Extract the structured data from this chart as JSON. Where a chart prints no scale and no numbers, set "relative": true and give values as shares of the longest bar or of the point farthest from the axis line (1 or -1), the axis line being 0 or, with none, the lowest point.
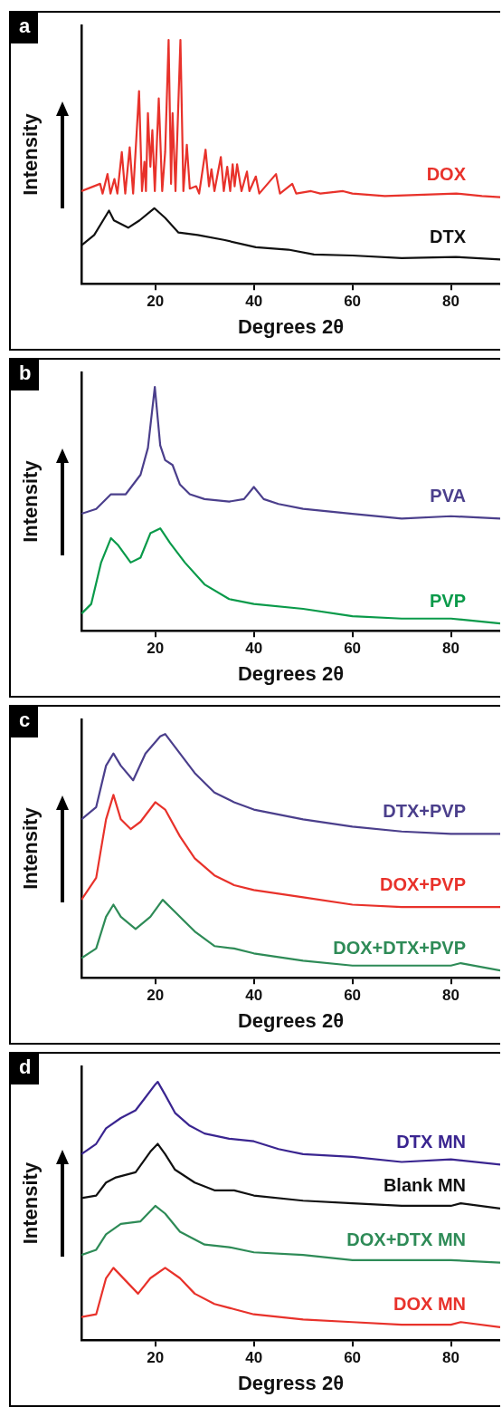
{
  "chart_data": [
    {
      "type": "line",
      "relative": true,
      "xlabel": "Degrees 2θ",
      "ylabel": "Intensity",
      "annotations": [
        "a"
      ],
      "xlim": [
        5,
        90
      ],
      "xticks": [
        20,
        40,
        60,
        80
      ],
      "legend": false,
      "marker": "none",
      "series": [
        {
          "name": "DOX",
          "color": "#e8322b",
          "x": [
            5,
            8.8,
            9.3,
            10.3,
            10.9,
            11.7,
            12.3,
            13.2,
            13.9,
            14.8,
            15.5,
            16.7,
            17.3,
            17.8,
            18.1,
            18.5,
            19.0,
            19.4,
            19.9,
            20.7,
            21.4,
            22.0,
            22.7,
            23.2,
            23.5,
            24.1,
            25.1,
            25.7,
            26.4,
            27.0,
            28.3,
            28.9,
            30.2,
            30.9,
            31.4,
            32.0,
            33.3,
            33.9,
            34.6,
            35.2,
            35.7,
            36.1,
            36.6,
            37.5,
            38.6,
            39.1,
            40.4,
            41.1,
            44.5,
            45.3,
            47.8,
            48.6,
            51.6,
            53.5,
            58.1,
            60,
            66.6,
            81.1,
            86.3,
            90
          ],
          "values": [
            0.38,
            0.41,
            0.37,
            0.45,
            0.37,
            0.43,
            0.37,
            0.54,
            0.37,
            0.56,
            0.37,
            0.79,
            0.38,
            0.5,
            0.38,
            0.7,
            0.48,
            0.63,
            0.38,
            0.76,
            0.38,
            0.54,
            1.0,
            0.41,
            0.7,
            0.38,
            1.0,
            0.38,
            0.57,
            0.39,
            0.4,
            0.37,
            0.55,
            0.4,
            0.47,
            0.38,
            0.52,
            0.38,
            0.48,
            0.38,
            0.49,
            0.4,
            0.49,
            0.38,
            0.46,
            0.38,
            0.44,
            0.37,
            0.45,
            0.37,
            0.41,
            0.37,
            0.38,
            0.37,
            0.38,
            0.37,
            0.36,
            0.37,
            0.36,
            0.355
          ]
        },
        {
          "name": "DTX",
          "color": "#111111",
          "x": [
            5,
            7.6,
            10.6,
            11.6,
            14.5,
            16.8,
            19.8,
            22,
            24.7,
            28.6,
            33.9,
            40.4,
            47,
            52.2,
            60,
            70,
            81,
            90
          ],
          "values": [
            0.157,
            0.2,
            0.3,
            0.26,
            0.23,
            0.26,
            0.31,
            0.27,
            0.21,
            0.2,
            0.18,
            0.15,
            0.14,
            0.12,
            0.116,
            0.105,
            0.11,
            0.1
          ]
        }
      ]
    },
    {
      "type": "line",
      "relative": true,
      "xlabel": "Degrees 2θ",
      "ylabel": "Intensity",
      "annotations": [
        "b"
      ],
      "xlim": [
        5,
        90
      ],
      "xticks": [
        20,
        40,
        60,
        80
      ],
      "legend": false,
      "marker": "none",
      "series": [
        {
          "name": "PVA",
          "color": "#4b3f8c",
          "x": [
            5,
            8,
            11,
            14,
            17,
            18.5,
            19.9,
            21,
            22,
            23.5,
            25,
            27,
            30,
            35,
            38,
            40,
            42,
            45,
            50,
            60,
            70,
            80,
            90
          ],
          "values": [
            0.48,
            0.5,
            0.56,
            0.56,
            0.64,
            0.75,
            1.0,
            0.76,
            0.7,
            0.68,
            0.6,
            0.56,
            0.54,
            0.53,
            0.54,
            0.59,
            0.54,
            0.52,
            0.5,
            0.48,
            0.46,
            0.47,
            0.46
          ]
        },
        {
          "name": "PVP",
          "color": "#0a9a4a",
          "x": [
            5,
            7,
            9,
            11,
            12.5,
            15,
            17,
            19,
            21,
            23,
            26,
            30,
            35,
            40,
            50,
            60,
            70,
            80,
            90
          ],
          "values": [
            0.07,
            0.11,
            0.28,
            0.38,
            0.35,
            0.28,
            0.3,
            0.4,
            0.42,
            0.36,
            0.28,
            0.19,
            0.13,
            0.11,
            0.09,
            0.06,
            0.05,
            0.05,
            0.03
          ]
        }
      ]
    },
    {
      "type": "line",
      "relative": true,
      "xlabel": "Degrees 2θ",
      "ylabel": "Intensity",
      "annotations": [
        "c"
      ],
      "xlim": [
        5,
        90
      ],
      "xticks": [
        20,
        40,
        60,
        80
      ],
      "legend": false,
      "marker": "none",
      "series": [
        {
          "name": "DTX+PVP",
          "color": "#4b3f8c",
          "x": [
            5,
            8,
            10,
            11.5,
            13,
            15.5,
            18,
            21,
            22,
            25,
            28,
            32,
            36,
            40,
            50,
            60,
            70,
            80,
            90
          ],
          "values": [
            0.65,
            0.7,
            0.87,
            0.92,
            0.87,
            0.81,
            0.92,
            0.99,
            1.0,
            0.92,
            0.84,
            0.76,
            0.72,
            0.69,
            0.65,
            0.62,
            0.6,
            0.59,
            0.59
          ]
        },
        {
          "name": "DOX+PVP",
          "color": "#e8322b",
          "x": [
            5,
            8,
            10,
            11.5,
            13,
            15,
            17,
            20,
            22,
            25,
            28,
            32,
            36,
            40,
            50,
            60,
            70,
            80,
            90
          ],
          "values": [
            0.32,
            0.41,
            0.65,
            0.75,
            0.65,
            0.61,
            0.64,
            0.72,
            0.69,
            0.58,
            0.49,
            0.42,
            0.38,
            0.36,
            0.33,
            0.3,
            0.29,
            0.29,
            0.29
          ]
        },
        {
          "name": "DOX+DTX+PVP",
          "color": "#2e8b57",
          "x": [
            5,
            8,
            10,
            11.5,
            13,
            16,
            19,
            21.5,
            24,
            28,
            32,
            36,
            40,
            50,
            60,
            70,
            80,
            82,
            90
          ],
          "values": [
            0.08,
            0.12,
            0.25,
            0.3,
            0.25,
            0.2,
            0.25,
            0.32,
            0.27,
            0.19,
            0.13,
            0.12,
            0.1,
            0.07,
            0.05,
            0.05,
            0.05,
            0.06,
            0.03
          ]
        }
      ]
    },
    {
      "type": "line",
      "relative": true,
      "xlabel": "Degress 2θ",
      "ylabel": "Intensity",
      "annotations": [
        "d"
      ],
      "xlim": [
        5,
        90
      ],
      "xticks": [
        20,
        40,
        60,
        80
      ],
      "legend": false,
      "marker": "none",
      "series": [
        {
          "name": "DTX MN",
          "color": "#3a2590",
          "x": [
            5,
            8,
            10,
            13,
            16,
            18,
            20,
            20.5,
            22,
            24,
            27,
            30,
            35,
            40,
            45,
            50,
            60,
            70,
            80,
            90
          ],
          "values": [
            0.72,
            0.76,
            0.82,
            0.86,
            0.89,
            0.94,
            0.99,
            1.0,
            0.95,
            0.88,
            0.83,
            0.8,
            0.78,
            0.77,
            0.74,
            0.72,
            0.71,
            0.69,
            0.7,
            0.68
          ]
        },
        {
          "name": "Blank MN",
          "color": "#111111",
          "x": [
            5,
            8,
            10,
            12,
            16,
            19,
            20.5,
            22,
            24,
            28,
            32,
            36,
            40,
            50,
            60,
            70,
            80,
            82,
            90
          ],
          "values": [
            0.55,
            0.56,
            0.61,
            0.63,
            0.65,
            0.73,
            0.76,
            0.72,
            0.66,
            0.61,
            0.58,
            0.58,
            0.56,
            0.54,
            0.53,
            0.52,
            0.52,
            0.53,
            0.51
          ]
        },
        {
          "name": "DOX+DTX MN",
          "color": "#2e8b57",
          "x": [
            5,
            8,
            10,
            13,
            17,
            20,
            22,
            25,
            30,
            35,
            40,
            50,
            60,
            70,
            80,
            90
          ],
          "values": [
            0.33,
            0.35,
            0.41,
            0.45,
            0.46,
            0.52,
            0.49,
            0.42,
            0.37,
            0.36,
            0.34,
            0.33,
            0.31,
            0.31,
            0.31,
            0.3
          ]
        },
        {
          "name": "DOX MN",
          "color": "#e8322b",
          "x": [
            5,
            8,
            10,
            11.5,
            14,
            16.5,
            19,
            22,
            25,
            28,
            32,
            36,
            40,
            50,
            60,
            70,
            80,
            82,
            90
          ],
          "values": [
            0.09,
            0.1,
            0.24,
            0.28,
            0.23,
            0.18,
            0.24,
            0.28,
            0.24,
            0.18,
            0.14,
            0.12,
            0.1,
            0.08,
            0.07,
            0.06,
            0.06,
            0.07,
            0.05
          ]
        }
      ]
    }
  ]
}
